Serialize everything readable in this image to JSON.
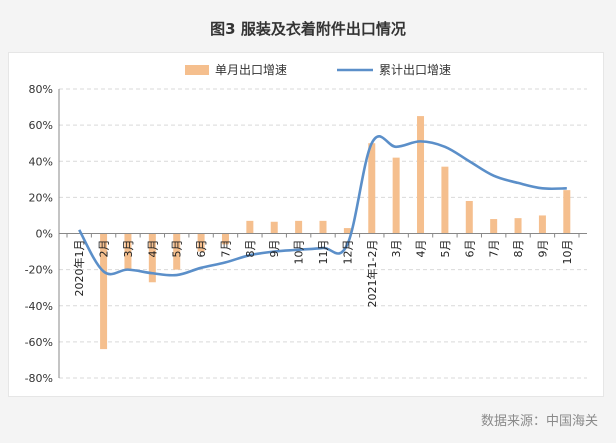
{
  "title": "图3   服装及衣着附件出口情况",
  "source": "数据来源：中国海关",
  "colors": {
    "bar": "#f5bf8e",
    "line": "#5b8fc9",
    "grid": "#d9d9d9",
    "axis": "#888888"
  },
  "chart_data": {
    "type": "bar",
    "categories": [
      "2020年1月",
      "2月",
      "3月",
      "4月",
      "5月",
      "6月",
      "7月",
      "8月",
      "9月",
      "10月",
      "11月",
      "12月",
      "2021年1-2月",
      "3月",
      "4月",
      "5月",
      "6月",
      "7月",
      "8月",
      "9月",
      "10月"
    ],
    "series": [
      {
        "name": "单月出口增速",
        "type": "bar",
        "values": [
          null,
          -64,
          -20,
          -27,
          -20,
          -10,
          -6,
          7,
          6.5,
          7,
          7,
          3,
          50,
          42,
          65,
          37,
          18,
          8,
          8.5,
          10,
          24
        ]
      },
      {
        "name": "累计出口增速",
        "type": "line",
        "values": [
          2,
          -21,
          -20,
          -22,
          -23,
          -19,
          -16,
          -12,
          -10,
          -9,
          -8,
          -6,
          50,
          48,
          51,
          48,
          40,
          32,
          28,
          25,
          25
        ]
      }
    ],
    "yticks": [
      "80%",
      "60%",
      "40%",
      "20%",
      "0%",
      "-20%",
      "-40%",
      "-60%",
      "-80%"
    ],
    "ylim": [
      -80,
      80
    ],
    "grid": true,
    "legend_position": "top-center"
  }
}
